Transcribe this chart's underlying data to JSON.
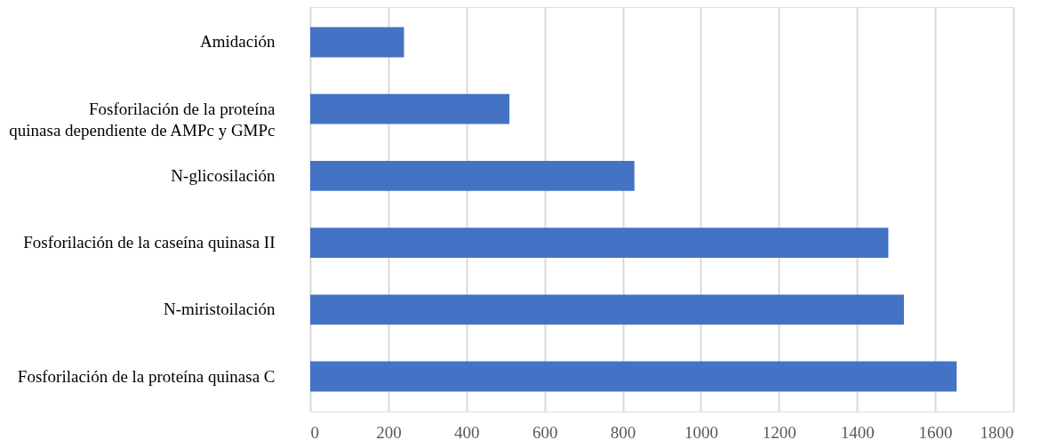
{
  "chart_data": {
    "type": "bar",
    "orientation": "horizontal",
    "categories": [
      "Amidación",
      "Fosforilación de la proteína\nquinasa dependiente de AMPc y GMPc",
      "N-glicosilación",
      "Fosforilación de la caseína quinasa II",
      "N-miristoilación",
      "Fosforilación de la proteína quinasa C"
    ],
    "values": [
      240,
      510,
      830,
      1480,
      1520,
      1655
    ],
    "color": "#4472c4",
    "xlim": [
      0,
      1800
    ],
    "xticks": [
      0,
      200,
      400,
      600,
      800,
      1000,
      1200,
      1400,
      1600,
      1800
    ],
    "grid": "x"
  }
}
